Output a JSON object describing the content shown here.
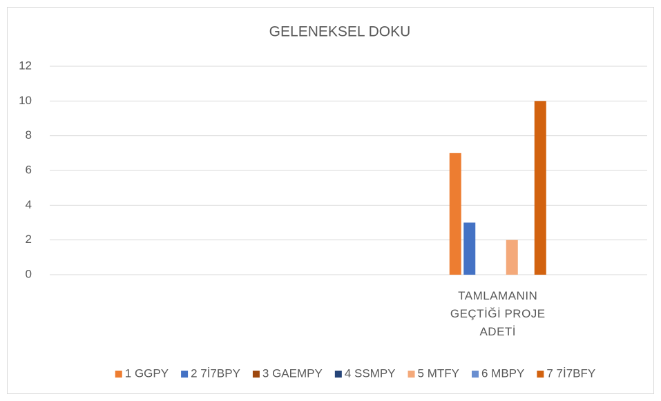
{
  "chart_data": {
    "type": "bar",
    "title": "GELENEKSEL DOKU",
    "categories": [
      null,
      "TAMLAMANIN GEÇTİĞİ PROJE ADETİ"
    ],
    "series": [
      {
        "name": "1 GGPY",
        "color": "#ed7d31",
        "values": [
          0,
          7
        ]
      },
      {
        "name": "2 7İ7BPY",
        "color": "#4472c4",
        "values": [
          0,
          3
        ]
      },
      {
        "name": "3 GAEMPY",
        "color": "#9e480e",
        "values": [
          0,
          0
        ]
      },
      {
        "name": "4 SSMPY",
        "color": "#264478",
        "values": [
          0,
          0
        ]
      },
      {
        "name": "5 MTFY",
        "color": "#f4a97a",
        "values": [
          0,
          2
        ]
      },
      {
        "name": "6 MBPY",
        "color": "#698ed0",
        "values": [
          0,
          0
        ]
      },
      {
        "name": "7 7İ7BFY",
        "color": "#d2620f",
        "values": [
          0,
          10
        ]
      }
    ],
    "ylim": [
      0,
      12
    ],
    "yticks": [
      0,
      2,
      4,
      6,
      8,
      10,
      12
    ],
    "grid": true,
    "legend": "bottom"
  }
}
